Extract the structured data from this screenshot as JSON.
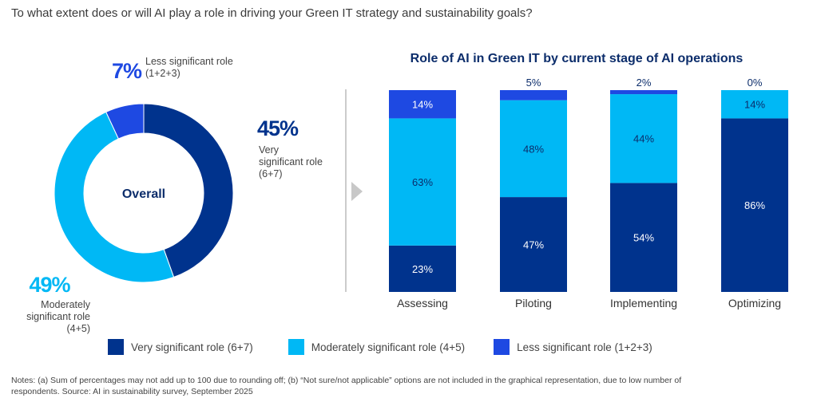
{
  "question": "To what extent does or will AI play a role in driving your Green IT strategy and sustainability goals?",
  "colors": {
    "very": "#00338d",
    "moderately": "#00b8f5",
    "less": "#1e49e2",
    "title": "#0c2d6b",
    "divider": "#bbbbbb",
    "arrow": "#c8c8c8"
  },
  "legend": {
    "items": [
      {
        "label": "Very significant role (6+7)",
        "color": "#00338d"
      },
      {
        "label": "Moderately significant role (4+5)",
        "color": "#00b8f5"
      },
      {
        "label": "Less significant role (1+2+3)",
        "color": "#1e49e2"
      }
    ]
  },
  "notes": {
    "line1": "Notes: (a) Sum of percentages may not add up to 100 due to rounding off; (b) “Not sure/not applicable” options are not included in the graphical representation, due to low number of",
    "line2": "respondents. Source: AI in sustainability survey, September 2025"
  },
  "chart_data": [
    {
      "type": "pie",
      "variant": "donut",
      "center_label": "Overall",
      "slices": [
        {
          "name": "Very significant role (6+7)",
          "value": 45,
          "display": "45%",
          "label_lines": [
            "Very",
            "significant role",
            "(6+7)"
          ],
          "color": "#00338d"
        },
        {
          "name": "Moderately significant role (4+5)",
          "value": 49,
          "display": "49%",
          "label_lines": [
            "Moderately",
            "significant role",
            "(4+5)"
          ],
          "color": "#00b8f5"
        },
        {
          "name": "Less significant role (1+2+3)",
          "value": 7,
          "display": "7%",
          "label_lines": [
            "Less significant role",
            "(1+2+3)"
          ],
          "color": "#1e49e2"
        }
      ]
    },
    {
      "type": "bar",
      "stacked": true,
      "title": "Role of AI in Green IT by current stage of AI operations",
      "categories": [
        "Assessing",
        "Piloting",
        "Implementing",
        "Optimizing"
      ],
      "ylim": [
        0,
        100
      ],
      "series": [
        {
          "name": "Very significant role (6+7)",
          "color": "#00338d",
          "values": [
            23,
            47,
            54,
            86
          ],
          "labels": [
            "23%",
            "47%",
            "54%",
            "86%"
          ]
        },
        {
          "name": "Moderately significant role (4+5)",
          "color": "#00b8f5",
          "values": [
            63,
            48,
            44,
            14
          ],
          "labels": [
            "63%",
            "48%",
            "44%",
            "14%"
          ]
        },
        {
          "name": "Less significant role (1+2+3)",
          "color": "#1e49e2",
          "values": [
            14,
            5,
            2,
            0
          ],
          "labels": [
            "14%",
            "5%",
            "2%",
            "0%"
          ]
        }
      ]
    }
  ]
}
